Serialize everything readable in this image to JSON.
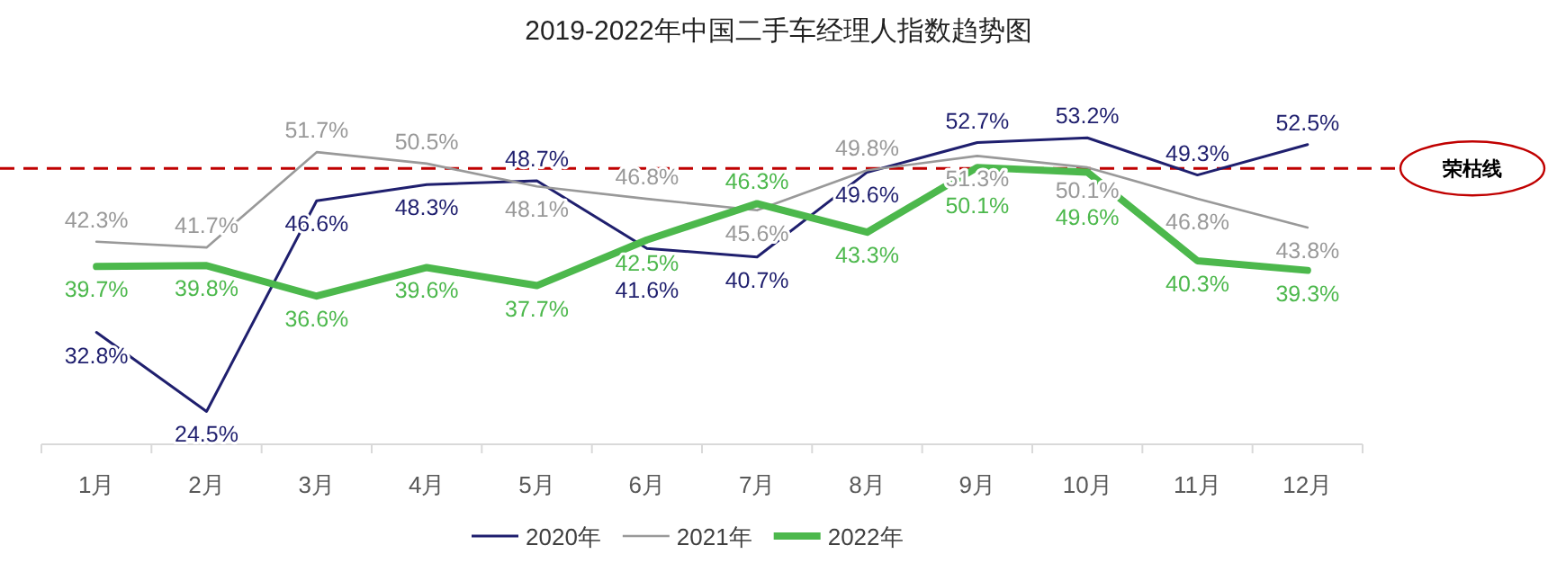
{
  "chart_data": {
    "type": "line",
    "title": "2019-2022年中国二手车经理人指数趋势图",
    "categories": [
      "1月",
      "2月",
      "3月",
      "4月",
      "5月",
      "6月",
      "7月",
      "8月",
      "9月",
      "10月",
      "11月",
      "12月"
    ],
    "series": [
      {
        "name": "2020年",
        "color": "#1f1f6e",
        "values": [
          32.8,
          24.5,
          46.6,
          48.3,
          48.7,
          41.6,
          40.7,
          49.6,
          52.7,
          53.2,
          49.3,
          52.5
        ],
        "value_labels": [
          "32.8%",
          "24.5%",
          "46.6%",
          "48.3%",
          "48.7%",
          "41.6%",
          "40.7%",
          "49.6%",
          "52.7%",
          "53.2%",
          "49.3%",
          "52.5%"
        ]
      },
      {
        "name": "2021年",
        "color": "#999999",
        "values": [
          42.3,
          41.7,
          51.7,
          50.5,
          48.1,
          46.8,
          45.6,
          49.8,
          51.3,
          50.1,
          46.8,
          43.8
        ],
        "value_labels": [
          "42.3%",
          "41.7%",
          "51.7%",
          "50.5%",
          "48.1%",
          "46.8%",
          "45.6%",
          "49.8%",
          "51.3%",
          "50.1%",
          "46.8%",
          "43.8%"
        ]
      },
      {
        "name": "2022年",
        "color": "#4cb84c",
        "values": [
          39.7,
          39.8,
          36.6,
          39.6,
          37.7,
          42.5,
          46.3,
          43.3,
          50.1,
          49.6,
          40.3,
          39.3
        ],
        "value_labels": [
          "39.7%",
          "39.8%",
          "36.6%",
          "39.6%",
          "37.7%",
          "42.5%",
          "46.3%",
          "43.3%",
          "50.1%",
          "49.6%",
          "40.3%",
          "39.3%"
        ]
      }
    ],
    "tick_labels": "x",
    "legend": "bottom",
    "marker": "none",
    "line_style": "solid",
    "ref_lines": [
      {
        "axis": "y",
        "value": 50,
        "label": "荣枯线",
        "color": "#c00000",
        "line_style": "dashed"
      }
    ]
  }
}
